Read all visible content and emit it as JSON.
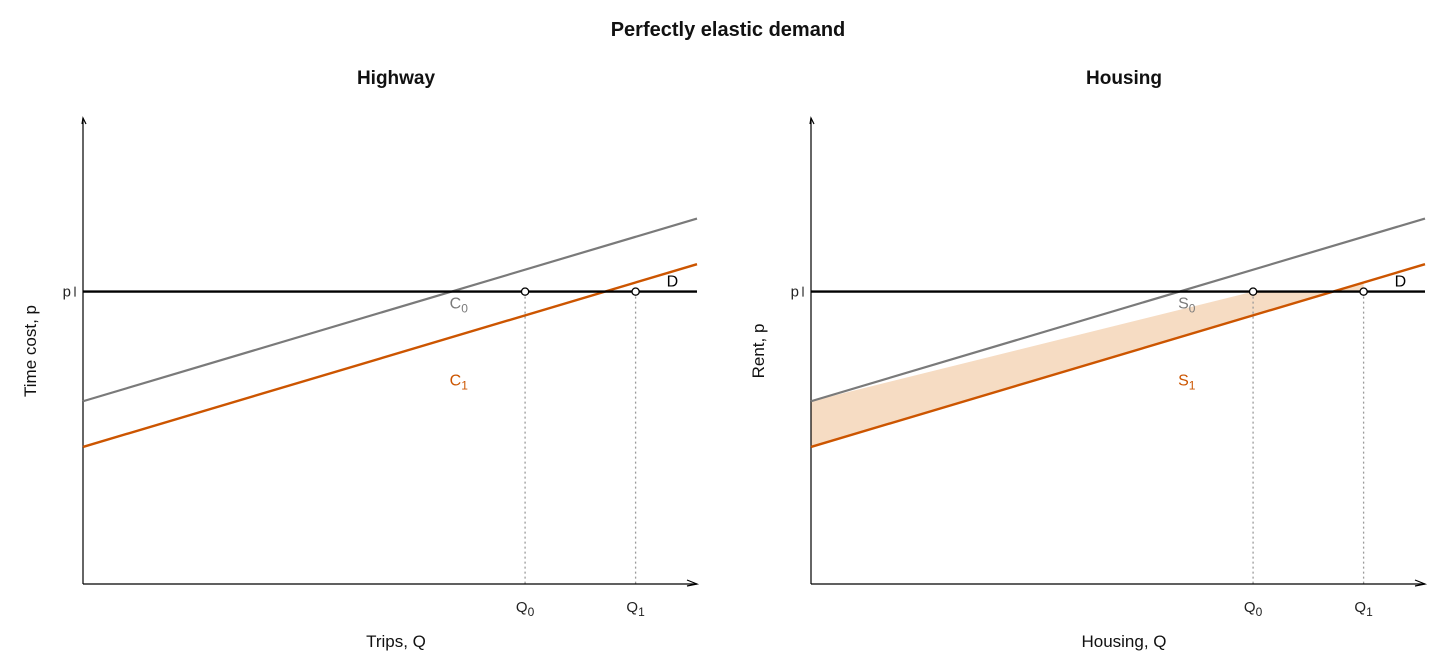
{
  "title": "Perfectly elastic demand",
  "colors": {
    "curve0": "#7a7a7a",
    "curve1": "#cc5500",
    "shade": "#f6dcc3",
    "demand": "#000000",
    "guide": "#9a9a9a"
  },
  "chart_data": [
    {
      "type": "line",
      "title": "Highway",
      "xlabel": "Trips, Q",
      "ylabel": "Time cost, p",
      "ytick_label": "p",
      "xtick_labels": [
        {
          "base": "Q",
          "sub": "0"
        },
        {
          "base": "Q",
          "sub": "1"
        }
      ],
      "series": [
        {
          "name": "C",
          "sub": "0",
          "x": [
            0,
            10
          ],
          "y": [
            2.2,
            6.2
          ]
        },
        {
          "name": "C",
          "sub": "1",
          "x": [
            0,
            10
          ],
          "y": [
            1.2,
            5.2
          ]
        },
        {
          "name": "D",
          "sub": "",
          "x": [
            0,
            10
          ],
          "y": [
            4.6,
            4.6
          ]
        }
      ],
      "points": [
        {
          "x": 7.2,
          "y": 4.6
        },
        {
          "x": 9.0,
          "y": 4.6
        }
      ],
      "shaded": false,
      "xlim": [
        0,
        10
      ],
      "ylim": [
        -1.8,
        8.4
      ]
    },
    {
      "type": "line",
      "title": "Housing",
      "xlabel": "Housing, Q",
      "ylabel": "Rent, p",
      "ytick_label": "p",
      "xtick_labels": [
        {
          "base": "Q",
          "sub": "0"
        },
        {
          "base": "Q",
          "sub": "1"
        }
      ],
      "series": [
        {
          "name": "S",
          "sub": "0",
          "x": [
            0,
            10
          ],
          "y": [
            2.2,
            6.2
          ]
        },
        {
          "name": "S",
          "sub": "1",
          "x": [
            0,
            10
          ],
          "y": [
            1.2,
            5.2
          ]
        },
        {
          "name": "D",
          "sub": "",
          "x": [
            0,
            10
          ],
          "y": [
            4.6,
            4.6
          ]
        }
      ],
      "points": [
        {
          "x": 7.2,
          "y": 4.6
        },
        {
          "x": 9.0,
          "y": 4.6
        }
      ],
      "shaded": true,
      "xlim": [
        0,
        10
      ],
      "ylim": [
        -1.8,
        8.4
      ]
    }
  ]
}
